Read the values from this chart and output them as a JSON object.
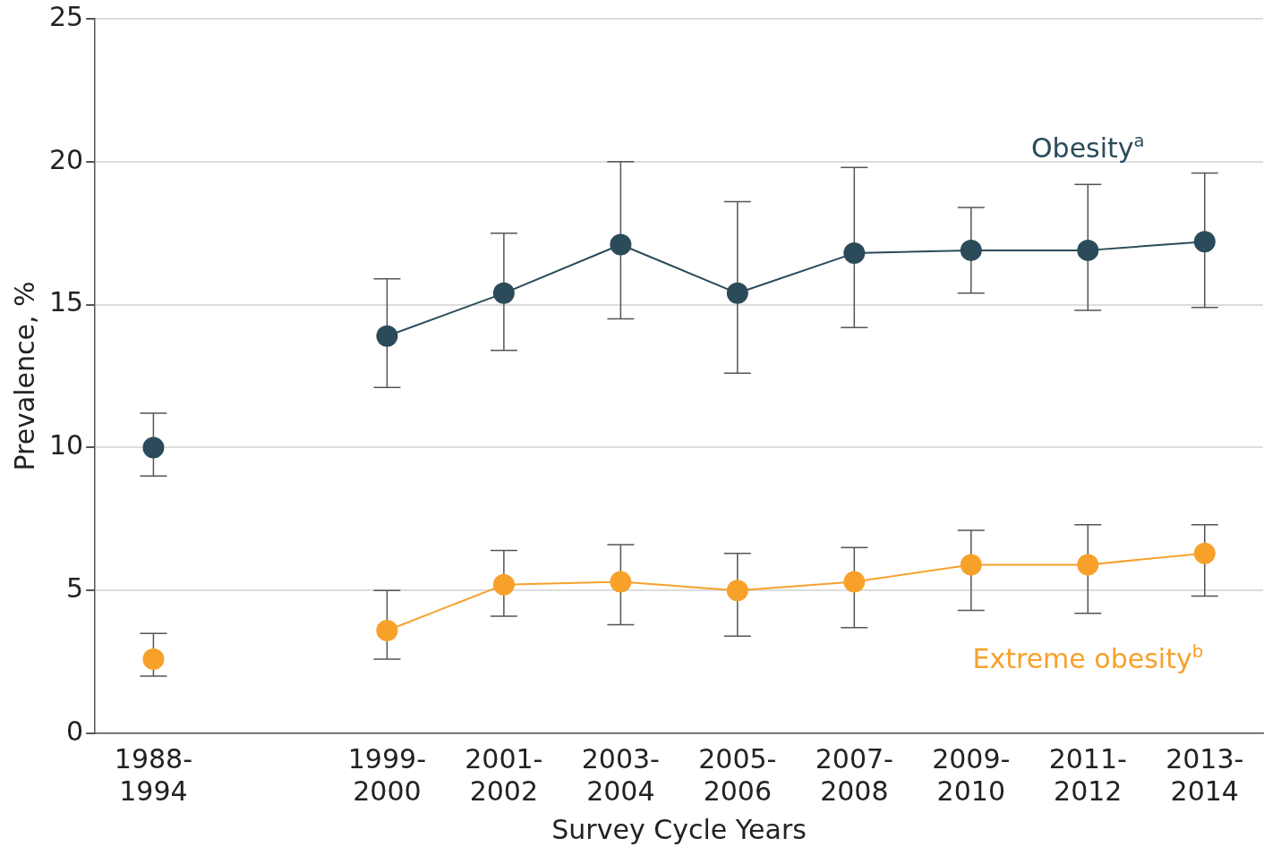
{
  "chart_data": {
    "type": "line",
    "xlabel": "Survey Cycle Years",
    "ylabel": "Prevalence, %",
    "categories": [
      "1988-1994",
      null,
      "1999-2000",
      "2001-2002",
      "2003-2004",
      "2005-2006",
      "2007-2008",
      "2009-2010",
      "2011-2012",
      "2013-2014"
    ],
    "series": [
      {
        "name": "Obesity$^{a}$",
        "color": "#2b4b5a",
        "values": [
          10.0,
          null,
          13.9,
          15.4,
          17.1,
          15.4,
          16.8,
          16.9,
          16.9,
          17.2
        ],
        "errors": [
          [
            9.0,
            11.2
          ],
          null,
          [
            12.1,
            15.9
          ],
          [
            13.4,
            17.5
          ],
          [
            14.5,
            20.0
          ],
          [
            12.6,
            18.6
          ],
          [
            14.2,
            19.8
          ],
          [
            15.4,
            18.4
          ],
          [
            14.8,
            19.2
          ],
          [
            14.9,
            19.6
          ]
        ]
      },
      {
        "name": "Extreme obesity$^{b}$",
        "color": "#f7a12b",
        "values": [
          2.6,
          null,
          3.6,
          5.2,
          5.3,
          5.0,
          5.3,
          5.9,
          5.9,
          6.3
        ],
        "errors": [
          [
            2.0,
            3.5
          ],
          null,
          [
            2.6,
            5.0
          ],
          [
            4.1,
            6.4
          ],
          [
            3.8,
            6.6
          ],
          [
            3.4,
            6.3
          ],
          [
            3.7,
            6.5
          ],
          [
            4.3,
            7.1
          ],
          [
            4.2,
            7.3
          ],
          [
            4.8,
            7.3
          ]
        ]
      }
    ],
    "ylim": [
      0,
      25
    ],
    "yticks": [
      0,
      5,
      10,
      15,
      20,
      25
    ],
    "grid": "y",
    "legend": false,
    "marker": "circle",
    "line_style": "solid"
  }
}
